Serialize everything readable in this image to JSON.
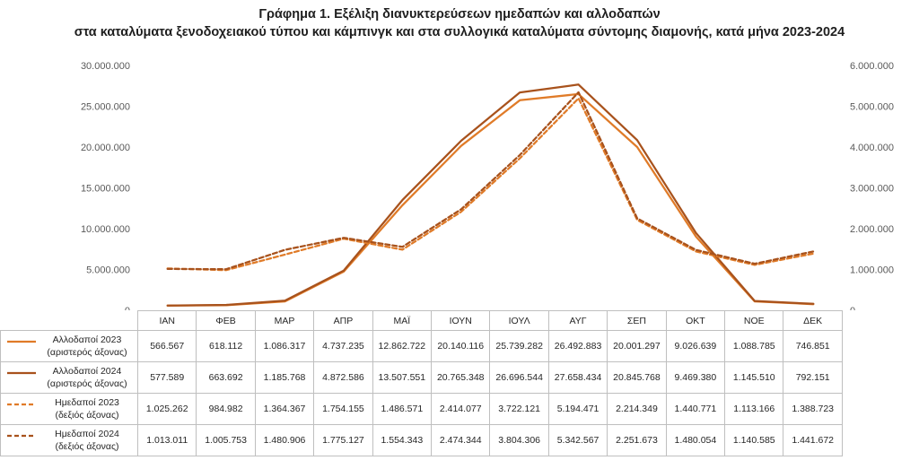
{
  "chart_data": {
    "type": "line",
    "title": "Γράφημα 1. Εξέλιξη διανυκτερεύσεων ημεδαπών και αλλοδαπών",
    "subtitle": "στα καταλύματα ξενοδοχειακού τύπου και κάμπινγκ και στα συλλογικά καταλύματα σύντομης διαμονής, κατά μήνα 2023-2024",
    "categories": [
      "ΙΑΝ",
      "ΦΕΒ",
      "ΜΑΡ",
      "ΑΠΡ",
      "ΜΑΪ",
      "ΙΟΥΝ",
      "ΙΟΥΛ",
      "ΑΥΓ",
      "ΣΕΠ",
      "ΟΚΤ",
      "ΝΟΕ",
      "ΔΕΚ"
    ],
    "y_left": {
      "min": 0,
      "max": 30000000,
      "ticks": [
        "0",
        "5.000.000",
        "10.000.000",
        "15.000.000",
        "20.000.000",
        "25.000.000",
        "30.000.000"
      ]
    },
    "y_right": {
      "min": 0,
      "max": 6000000,
      "ticks": [
        "0",
        "1.000.000",
        "2.000.000",
        "3.000.000",
        "4.000.000",
        "5.000.000",
        "6.000.000"
      ]
    },
    "grid": false,
    "series": [
      {
        "name": "Αλλοδαποί 2023",
        "name_note": "(αριστερός άξονας)",
        "axis": "left",
        "color": "#e07b28",
        "dash": false,
        "values": [
          566567,
          618112,
          1086317,
          4737235,
          12862722,
          20140116,
          25739282,
          26492883,
          20001297,
          9026639,
          1088785,
          746851
        ],
        "labels": [
          "566.567",
          "618.112",
          "1.086.317",
          "4.737.235",
          "12.862.722",
          "20.140.116",
          "25.739.282",
          "26.492.883",
          "20.001.297",
          "9.026.639",
          "1.088.785",
          "746.851"
        ]
      },
      {
        "name": "Αλλοδαποί 2024",
        "name_note": "(αριστερός άξονας)",
        "axis": "left",
        "color": "#a8521c",
        "dash": false,
        "values": [
          577589,
          663692,
          1185768,
          4872586,
          13507551,
          20765348,
          26696544,
          27658434,
          20845768,
          9469380,
          1145510,
          792151
        ],
        "labels": [
          "577.589",
          "663.692",
          "1.185.768",
          "4.872.586",
          "13.507.551",
          "20.765.348",
          "26.696.544",
          "27.658.434",
          "20.845.768",
          "9.469.380",
          "1.145.510",
          "792.151"
        ]
      },
      {
        "name": "Ημεδαποί 2023",
        "name_note": "(δεξιός άξονας)",
        "axis": "right",
        "color": "#e07b28",
        "dash": true,
        "values": [
          1025262,
          984982,
          1364367,
          1754155,
          1486571,
          2414077,
          3722121,
          5194471,
          2214349,
          1440771,
          1113166,
          1388723
        ],
        "labels": [
          "1.025.262",
          "984.982",
          "1.364.367",
          "1.754.155",
          "1.486.571",
          "2.414.077",
          "3.722.121",
          "5.194.471",
          "2.214.349",
          "1.440.771",
          "1.113.166",
          "1.388.723"
        ]
      },
      {
        "name": "Ημεδαποί 2024",
        "name_note": "(δεξιός άξονας)",
        "axis": "right",
        "color": "#a8521c",
        "dash": true,
        "values": [
          1013011,
          1005753,
          1480906,
          1775127,
          1554343,
          2474344,
          3804306,
          5342567,
          2251673,
          1480054,
          1140585,
          1441672
        ],
        "labels": [
          "1.013.011",
          "1.005.753",
          "1.480.906",
          "1.775.127",
          "1.554.343",
          "2.474.344",
          "3.804.306",
          "5.342.567",
          "2.251.673",
          "1.480.054",
          "1.140.585",
          "1.441.672"
        ]
      }
    ]
  }
}
